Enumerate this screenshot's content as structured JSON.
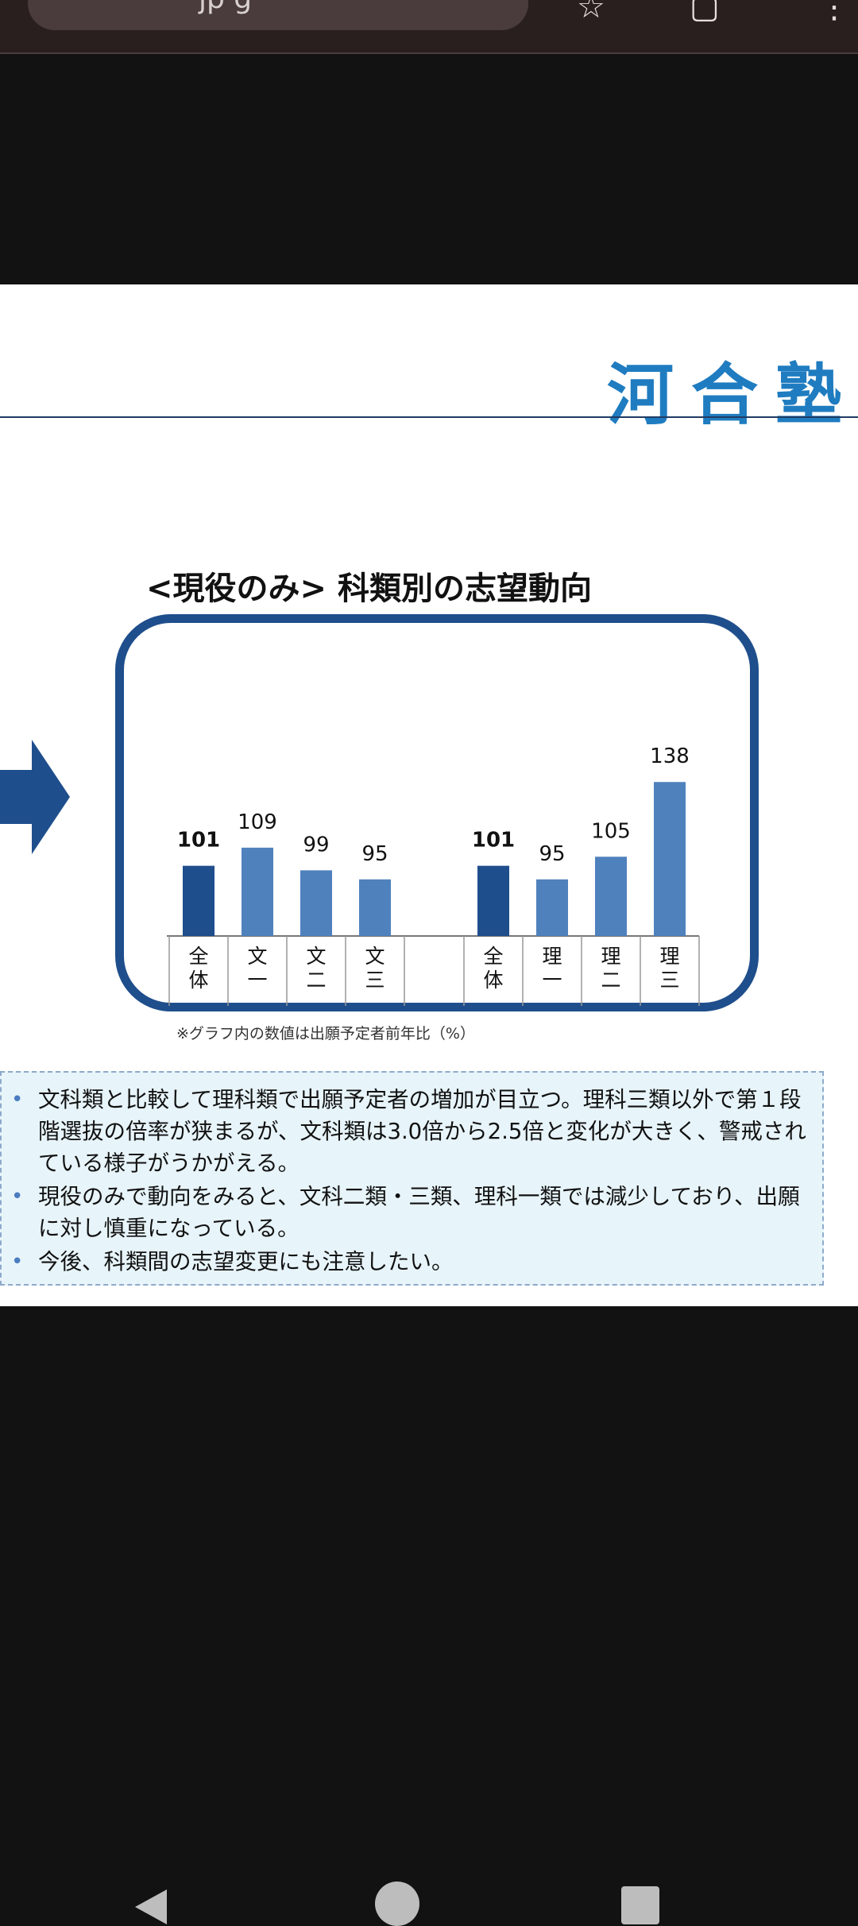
{
  "browser": {
    "url_fragment": "jp  g",
    "star_icon": "star-icon",
    "tabs_icon": "tabs-icon",
    "menu_icon": "more-icon"
  },
  "slide": {
    "logo": "河合塾",
    "chart_title": "<現役のみ> 科類別の志望動向",
    "footnote": "※グラフ内の数値は出願予定者前年比（%）",
    "notes": [
      "文科類と比較して理科類で出願予定者の増加が目立つ。理科三類以外で第１段階選抜の倍率が狭まるが、文科類は3.0倍から2.5倍と変化が大きく、警戒されている様子がうかがえる。",
      "現役のみで動向をみると、文科二類・三類、理科一類では減少しており、出願に対し慎重になっている。",
      "今後、科類間の志望変更にも注意したい。"
    ],
    "accent_color": "#1f4e8c",
    "logo_color": "#1f7cc0"
  },
  "chart_data": {
    "type": "bar",
    "title": "<現役のみ> 科類別の志望動向",
    "groups": [
      {
        "categories": [
          "全体",
          "文一",
          "文二",
          "文三"
        ],
        "values": [
          101,
          109,
          99,
          95
        ]
      },
      {
        "categories": [
          "全体",
          "理一",
          "理二",
          "理三"
        ],
        "values": [
          101,
          95,
          105,
          138
        ]
      }
    ],
    "total_bar_color": "#1f4e8c",
    "bar_color": "#4f81bd",
    "bold_labels_for": "全体",
    "xlabel": "",
    "ylabel": ""
  },
  "navbar": {
    "back_icon": "back-icon",
    "home_icon": "home-icon",
    "recent_icon": "recent-apps-icon"
  }
}
